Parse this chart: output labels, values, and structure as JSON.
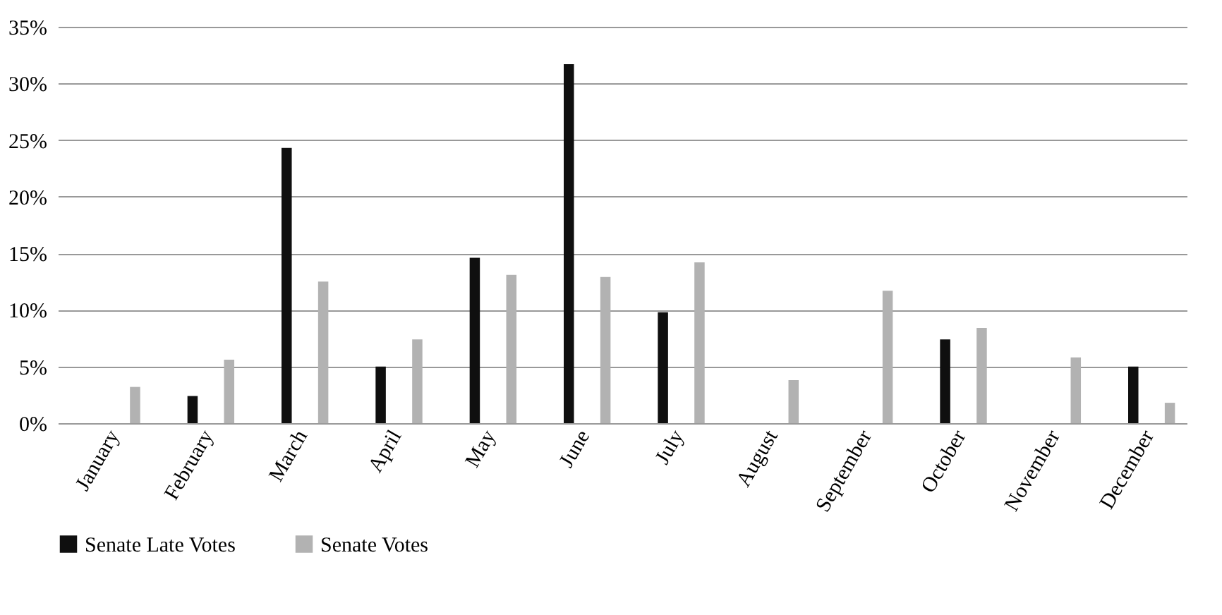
{
  "chart_data": {
    "type": "bar",
    "categories": [
      "January",
      "February",
      "March",
      "April",
      "May",
      "June",
      "July",
      "August",
      "September",
      "October",
      "November",
      "December"
    ],
    "series": [
      {
        "name": "Senate Late Votes",
        "color": "#0f0f0f",
        "values": [
          0,
          2.4,
          24.3,
          5.0,
          14.6,
          31.7,
          9.8,
          0,
          0,
          7.4,
          0,
          5.0
        ]
      },
      {
        "name": "Senate Votes",
        "color": "#b2b2b2",
        "values": [
          3.2,
          5.6,
          12.5,
          7.4,
          13.1,
          12.9,
          14.2,
          3.8,
          11.7,
          8.4,
          5.8,
          1.8
        ]
      }
    ],
    "ylim": [
      0,
      35
    ],
    "yticks": [
      {
        "value": 0,
        "label": "0%"
      },
      {
        "value": 5,
        "label": "5%"
      },
      {
        "value": 10,
        "label": "10%"
      },
      {
        "value": 15,
        "label": "15%"
      },
      {
        "value": 20,
        "label": "20%"
      },
      {
        "value": 25,
        "label": "25%"
      },
      {
        "value": 30,
        "label": "30%"
      },
      {
        "value": 35,
        "label": "35%"
      }
    ],
    "grid": "y",
    "legend": "bottom"
  }
}
